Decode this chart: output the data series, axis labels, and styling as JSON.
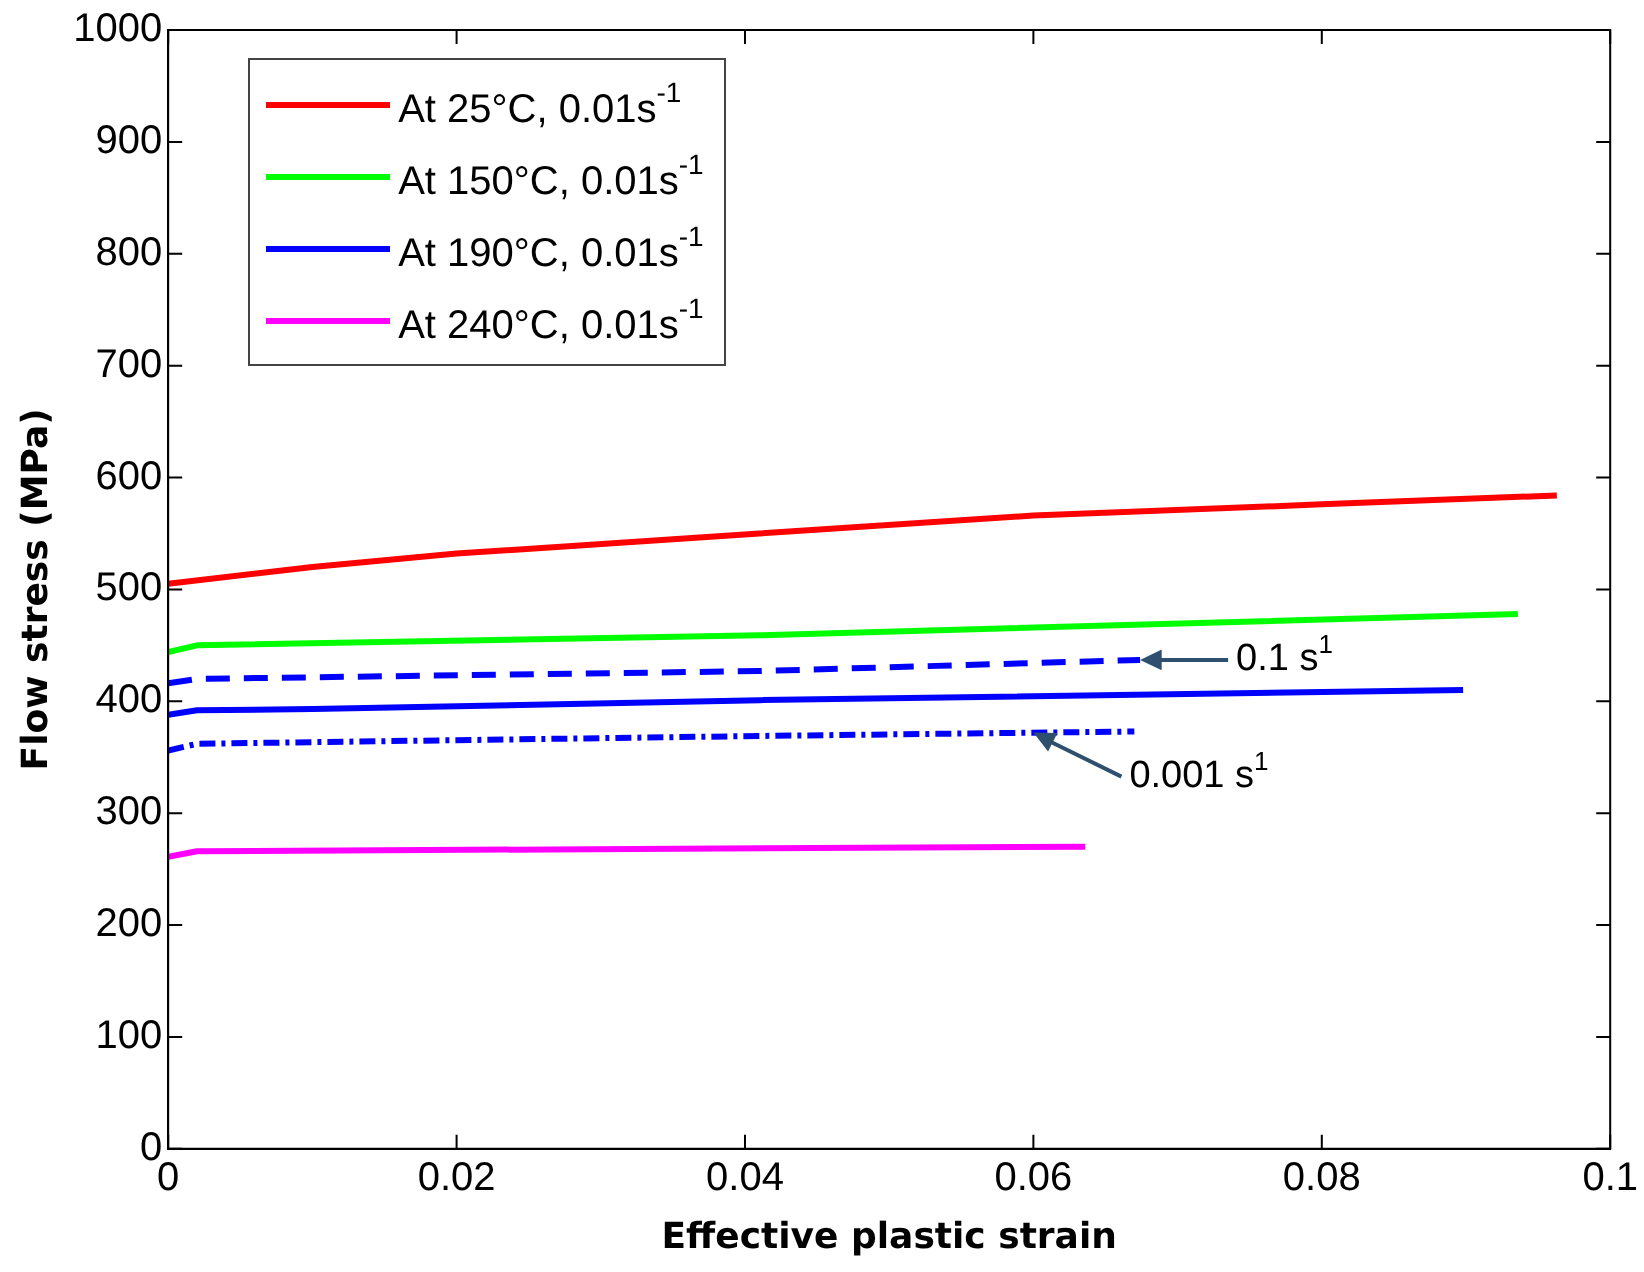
{
  "chart_data": {
    "type": "line",
    "xlabel": "Effective plastic strain",
    "ylabel": "Flow stress (MPa)",
    "xlim": [
      0,
      0.1
    ],
    "xticks": [
      0,
      0.02,
      0.04,
      0.06,
      0.08,
      0.1
    ],
    "ylim": [
      0,
      1000
    ],
    "yticks": [
      0,
      100,
      200,
      300,
      400,
      500,
      600,
      700,
      800,
      900,
      1000
    ],
    "grid": false,
    "legend": "top left",
    "marker": "none",
    "series": [
      {
        "name": "At 25°C, 0.01s$^{-1}$",
        "color": "#ff0000",
        "line_style": "solid",
        "x": [
          0,
          0.01,
          0.02,
          0.041,
          0.06,
          0.08,
          0.0963
        ],
        "values": [
          505,
          520,
          532,
          550,
          566,
          576,
          584
        ]
      },
      {
        "name": "At 150°C, 0.01s$^{-1}$",
        "color": "#00ff00",
        "line_style": "solid",
        "x": [
          0,
          0.002,
          0.041,
          0.0936
        ],
        "values": [
          444,
          450,
          459,
          478
        ]
      },
      {
        "name": "At 190°C, 0.01s$^{-1}$",
        "color": "#0000ff",
        "line_style": "solid",
        "x": [
          0,
          0.002,
          0.01,
          0.041,
          0.0898
        ],
        "values": [
          388,
          392,
          393,
          401,
          410
        ]
      },
      {
        "name": "At 240°C, 0.01s$^{-1}$",
        "color": "#ff00ff",
        "line_style": "solid",
        "x": [
          0,
          0.002,
          0.0636
        ],
        "values": [
          261,
          266,
          270
        ]
      },
      {
        "color": "#0000ff",
        "line_style": "dashed",
        "x": [
          0,
          0.002,
          0.041,
          0.0674
        ],
        "values": [
          416,
          420,
          427,
          437
        ]
      },
      {
        "color": "#0000ff",
        "line_style": "dotted",
        "x": [
          0,
          0.002,
          0.041,
          0.067
        ],
        "values": [
          356,
          362,
          369,
          373
        ]
      }
    ],
    "annotations": [
      {
        "text": "0.1 s$^{1}$",
        "x": 0.0674,
        "y": 437
      },
      {
        "text": "0.001 s$^{1}$",
        "x": 0.06,
        "y": 372
      }
    ]
  }
}
